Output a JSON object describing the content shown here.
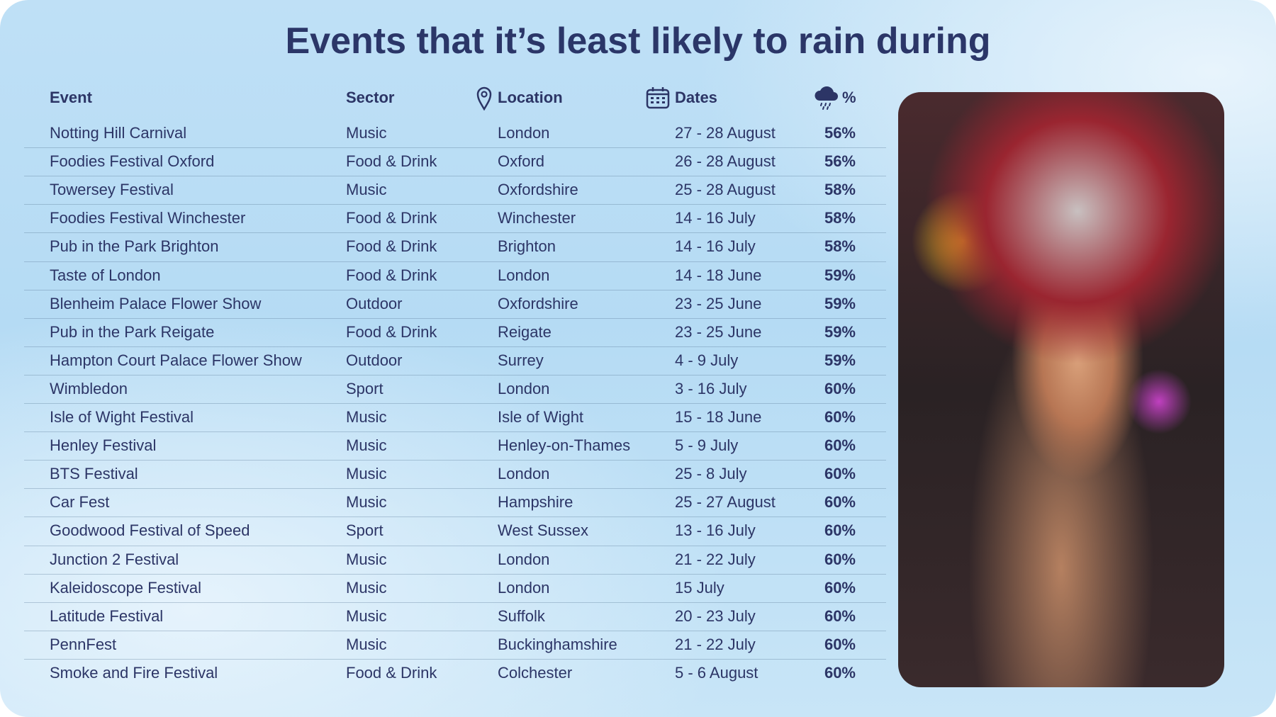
{
  "header": {
    "title": "Events that it’s least likely to rain during"
  },
  "table": {
    "columns": [
      "Event",
      "Sector",
      "Location",
      "Dates",
      "%"
    ],
    "rows": [
      [
        "Notting Hill Carnival",
        "Music",
        "London",
        "27 - 28 August",
        "56%"
      ],
      [
        "Foodies Festival Oxford",
        "Food & Drink",
        "Oxford",
        "26 - 28 August",
        "56%"
      ],
      [
        "Towersey Festival",
        "Music",
        "Oxfordshire",
        "25 - 28 August",
        "58%"
      ],
      [
        "Foodies Festival Winchester",
        "Food & Drink",
        "Winchester",
        "14 - 16 July",
        "58%"
      ],
      [
        "Pub in the Park Brighton",
        "Food & Drink",
        "Brighton",
        "14 - 16 July",
        "58%"
      ],
      [
        "Taste of London",
        "Food & Drink",
        "London",
        "14 - 18 June",
        "59%"
      ],
      [
        "Blenheim Palace Flower Show",
        "Outdoor",
        "Oxfordshire",
        "23 - 25 June",
        "59%"
      ],
      [
        "Pub in the Park Reigate",
        "Food & Drink",
        "Reigate",
        "23 - 25 June",
        "59%"
      ],
      [
        "Hampton Court Palace Flower Show",
        "Outdoor",
        "Surrey",
        "4 - 9 July",
        "59%"
      ],
      [
        "Wimbledon",
        "Sport",
        "London",
        "3 - 16 July",
        "60%"
      ],
      [
        "Isle of Wight Festival",
        "Music",
        "Isle of Wight",
        "15 - 18 June",
        "60%"
      ],
      [
        "Henley Festival",
        "Music",
        "Henley-on-Thames",
        "5 - 9 July",
        "60%"
      ],
      [
        "BTS Festival",
        "Music",
        "London",
        "25 - 8 July",
        "60%"
      ],
      [
        "Car Fest",
        "Music",
        "Hampshire",
        "25 - 27 August",
        "60%"
      ],
      [
        "Goodwood Festival of Speed",
        "Sport",
        "West Sussex",
        "13 - 16 July",
        "60%"
      ],
      [
        "Junction 2 Festival",
        "Music",
        "London",
        "21 - 22 July",
        "60%"
      ],
      [
        "Kaleidoscope Festival",
        "Music",
        "London",
        "15 July",
        "60%"
      ],
      [
        "Latitude Festival",
        "Music",
        "Suffolk",
        "20 - 23 July",
        "60%"
      ],
      [
        "PennFest",
        "Music",
        "Buckinghamshire",
        "21 - 22 July",
        "60%"
      ],
      [
        "Smoke and Fire Festival",
        "Food & Drink",
        "Colchester",
        "5 - 6 August",
        "60%"
      ]
    ]
  }
}
